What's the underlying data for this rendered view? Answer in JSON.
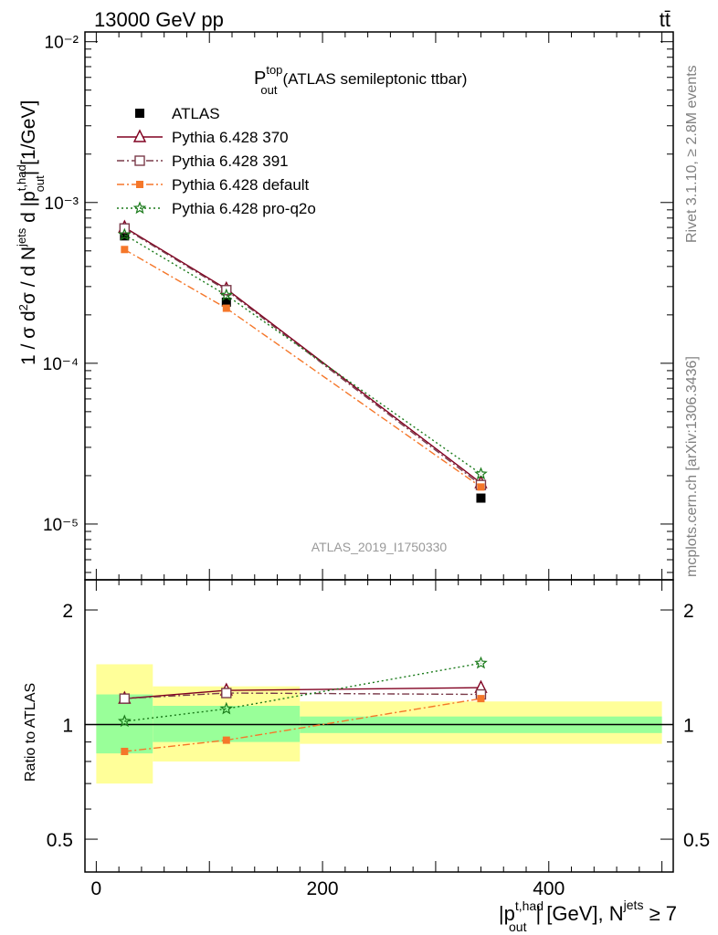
{
  "header": {
    "left": "13000 GeV pp",
    "right": "tt̄"
  },
  "side_labels": {
    "rivet": "Rivet 3.1.10, ≥ 2.8M events",
    "mcplots": "mcplots.cern.ch [arXiv:1306.3436]"
  },
  "analysis_id": "ATLAS_2019_I1750330",
  "chart_data": [
    {
      "type": "line",
      "title": "P_out^top (ATLAS semileptonic ttbar)",
      "title_main": "P",
      "title_sup": "top",
      "title_sub": "out",
      "title_rest": "(ATLAS semileptonic ttbar)",
      "ylabel": "1 / σ d²σ / d N^jets d |p_out^t,had| [1/GeV]",
      "yscale": "log",
      "ylim": [
        4.5e-06,
        0.0115
      ],
      "xlim": [
        -10,
        510
      ],
      "ytick_labels": [
        "10⁻²",
        "10⁻³",
        "10⁻⁴",
        "10⁻⁵"
      ],
      "ytick_values": [
        0.01,
        0.001,
        0.0001,
        1e-05
      ],
      "legend_position": "top-left",
      "x": [
        25,
        115,
        340
      ],
      "data": {
        "name": "ATLAS",
        "values": [
          0.00062,
          0.00024,
          1.45e-05
        ],
        "bins": [
          [
            0,
            50
          ],
          [
            50,
            180
          ],
          [
            180,
            500
          ]
        ]
      },
      "series": [
        {
          "name": "Pythia 6.428 370",
          "color": "#800020",
          "style": "solid",
          "marker": "open-triangle",
          "values": [
            0.0007,
            0.00029,
            1.8e-05
          ]
        },
        {
          "name": "Pythia 6.428 391",
          "color": "#7a3b4a",
          "style": "dash-dot",
          "marker": "open-square",
          "values": [
            0.00069,
            0.000285,
            1.75e-05
          ]
        },
        {
          "name": "Pythia 6.428 default",
          "color": "#f5772a",
          "style": "dash-dot",
          "marker": "filled-square",
          "values": [
            0.00051,
            0.00022,
            1.7e-05
          ]
        },
        {
          "name": "Pythia 6.428 pro-q2o",
          "color": "#1a7a1a",
          "style": "dotted",
          "marker": "star",
          "values": [
            0.00063,
            0.000265,
            2.05e-05
          ]
        }
      ]
    },
    {
      "type": "line",
      "ylabel": "Ratio to ATLAS",
      "xlabel": "|p_out^t,had| [GeV], N^jets ≥ 7",
      "xlabel_pre": "|p",
      "xlabel_sup": "t,had",
      "xlabel_sub": "out",
      "xlabel_mid": "| [GeV], N",
      "xlabel_sup2": "jets",
      "xlabel_post": " ≥ 7",
      "yscale": "log",
      "ylim": [
        0.41,
        2.4
      ],
      "xlim": [
        -10,
        510
      ],
      "ytick_labels": [
        "2",
        "1",
        "0.5"
      ],
      "ytick_values": [
        2,
        1,
        0.5
      ],
      "xtick_labels": [
        "0",
        "200",
        "400"
      ],
      "xtick_values": [
        0,
        200,
        400
      ],
      "uncertainty_bands": [
        {
          "bin": [
            0,
            50
          ],
          "inner": [
            0.84,
            1.2
          ],
          "outer": [
            0.7,
            1.44
          ]
        },
        {
          "bin": [
            50,
            180
          ],
          "inner": [
            0.9,
            1.12
          ],
          "outer": [
            0.8,
            1.26
          ]
        },
        {
          "bin": [
            180,
            500
          ],
          "inner": [
            0.95,
            1.05
          ],
          "outer": [
            0.89,
            1.15
          ]
        }
      ],
      "x": [
        25,
        115,
        340
      ],
      "series": [
        {
          "name": "Pythia 6.428 370",
          "values": [
            1.17,
            1.23,
            1.25
          ]
        },
        {
          "name": "Pythia 6.428 391",
          "values": [
            1.17,
            1.21,
            1.2
          ]
        },
        {
          "name": "Pythia 6.428 default",
          "values": [
            0.85,
            0.91,
            1.17
          ]
        },
        {
          "name": "Pythia 6.428 pro-q2o",
          "values": [
            1.02,
            1.1,
            1.45
          ]
        }
      ]
    }
  ]
}
